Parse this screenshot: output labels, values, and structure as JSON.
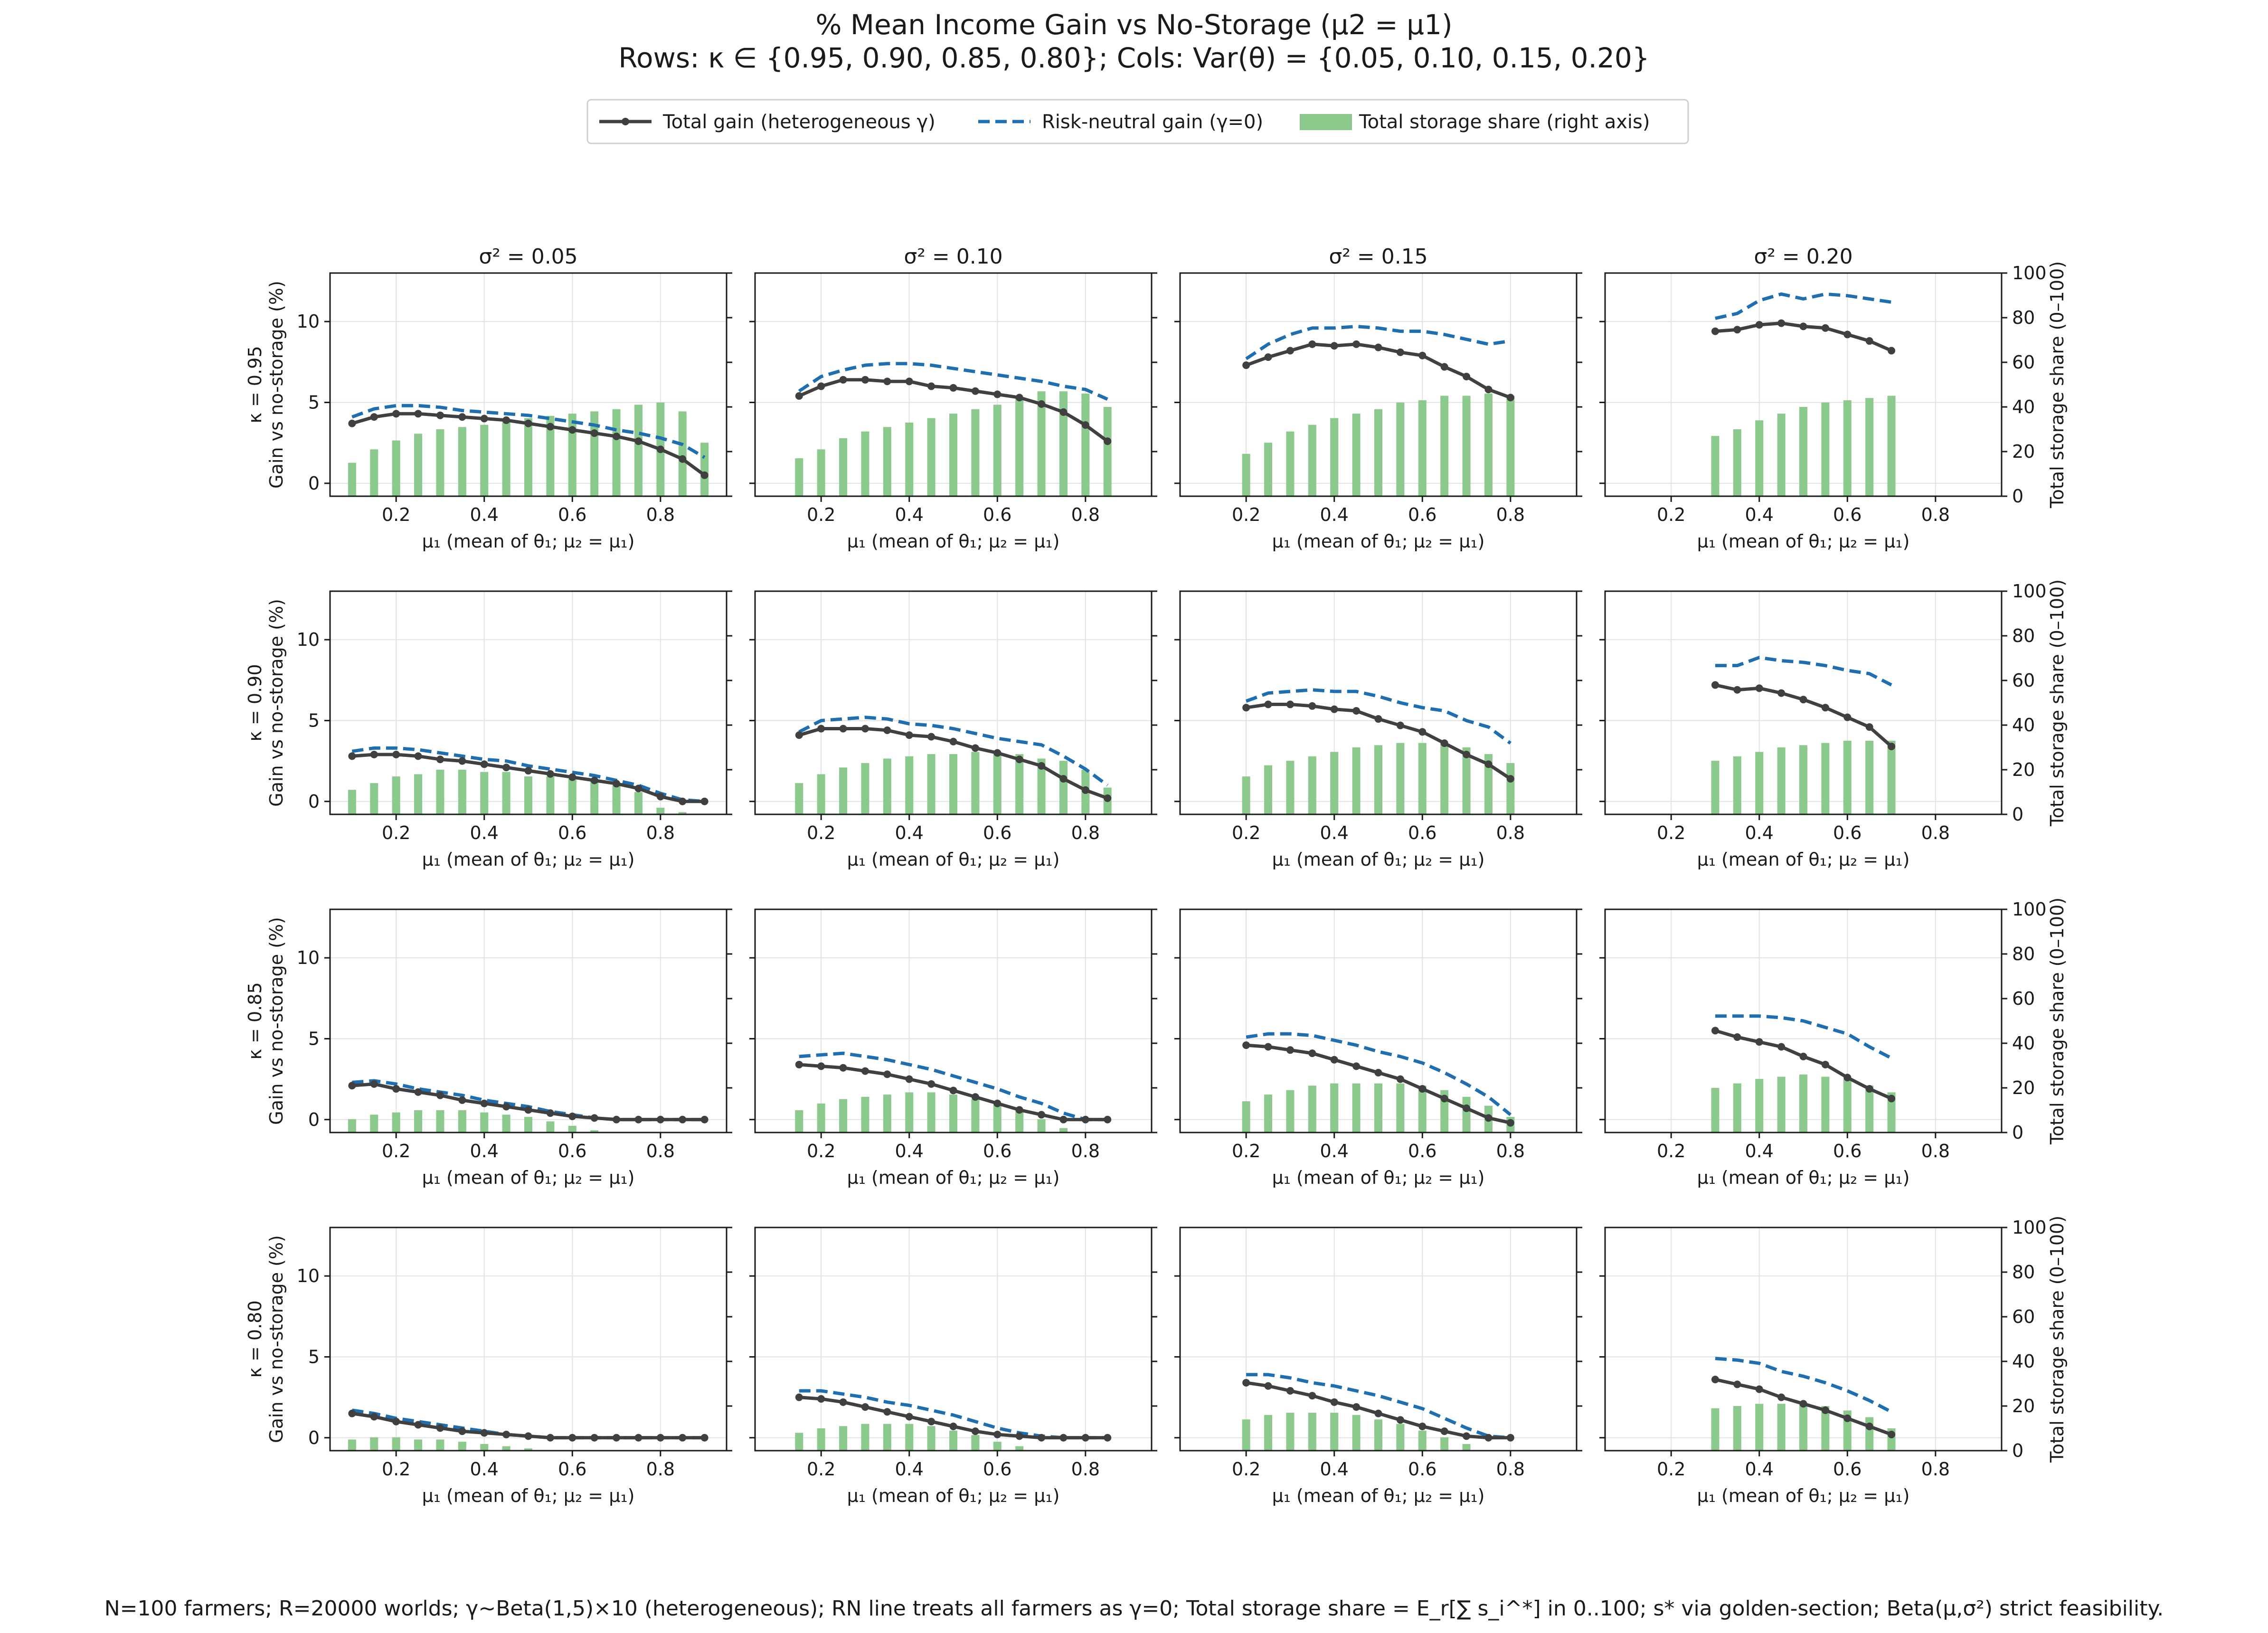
{
  "figure": {
    "title_line1": "% Mean Income Gain vs No-Storage (μ2 = μ1)",
    "title_line2": "Rows: κ ∈ {0.95, 0.90, 0.85, 0.80}; Cols: Var(θ) = {0.05, 0.10, 0.15, 0.20}",
    "footnote": "N=100 farmers; R=20000 worlds; γ~Beta(1,5)×10 (heterogeneous); RN line treats all farmers as γ=0; Total storage share = E_r[∑ s_i^*] in 0..100; s* via golden-section; Beta(μ,σ²) strict feasibility.",
    "legend": {
      "total": "Total gain (heterogeneous γ)",
      "rn": "Risk-neutral gain (γ=0)",
      "share": "Total storage share (right axis)"
    },
    "colors": {
      "total": "#404040",
      "rn": "#1f6fb0",
      "share": "#8cc98c",
      "grid": "#e2e2e2"
    }
  },
  "chart_data": {
    "type": "line",
    "layout": "grid 4 rows × 4 cols",
    "col_titles": [
      "σ² = 0.05",
      "σ² = 0.10",
      "σ² = 0.15",
      "σ² = 0.20"
    ],
    "row_labels": [
      "κ = 0.95",
      "κ = 0.90",
      "κ = 0.85",
      "κ = 0.80"
    ],
    "xlabel": "μ₁ (mean of θ₁; μ₂ = μ₁)",
    "ylabel_left": "Gain vs no-storage (%)",
    "ylabel_right": "Total storage share (0–100)",
    "xlim": [
      0.05,
      0.95
    ],
    "xticks": [
      "0.2",
      "0.4",
      "0.6",
      "0.8"
    ],
    "ylim_left": [
      -0.8,
      13
    ],
    "yticks_left": [
      "0",
      "5",
      "10"
    ],
    "ylim_right": [
      0,
      100
    ],
    "yticks_right": [
      "0",
      "20",
      "40",
      "60",
      "80",
      "100"
    ],
    "grid": true,
    "legend_position": "top-center",
    "panels": [
      [
        {
          "x": [
            0.1,
            0.15,
            0.2,
            0.25,
            0.3,
            0.35,
            0.4,
            0.45,
            0.5,
            0.55,
            0.6,
            0.65,
            0.7,
            0.75,
            0.8,
            0.85,
            0.9
          ],
          "total": [
            3.7,
            4.1,
            4.3,
            4.3,
            4.2,
            4.1,
            4.0,
            3.9,
            3.7,
            3.5,
            3.3,
            3.1,
            2.9,
            2.6,
            2.1,
            1.5,
            0.5
          ],
          "rn": [
            4.1,
            4.6,
            4.8,
            4.8,
            4.7,
            4.5,
            4.4,
            4.3,
            4.2,
            4.0,
            3.8,
            3.6,
            3.3,
            3.1,
            2.8,
            2.4,
            1.6
          ],
          "share": [
            15,
            21,
            25,
            28,
            30,
            31,
            32,
            34,
            35,
            36,
            37,
            38,
            39,
            41,
            42,
            38,
            24
          ]
        },
        {
          "x": [
            0.15,
            0.2,
            0.25,
            0.3,
            0.35,
            0.4,
            0.45,
            0.5,
            0.55,
            0.6,
            0.65,
            0.7,
            0.75,
            0.8,
            0.85
          ],
          "total": [
            5.4,
            6.0,
            6.4,
            6.4,
            6.3,
            6.3,
            6.0,
            5.9,
            5.7,
            5.5,
            5.3,
            4.9,
            4.4,
            3.6,
            2.6
          ],
          "rn": [
            5.7,
            6.6,
            7.0,
            7.3,
            7.4,
            7.4,
            7.3,
            7.1,
            6.9,
            6.7,
            6.5,
            6.3,
            6.0,
            5.8,
            5.2
          ],
          "share": [
            17,
            21,
            26,
            29,
            31,
            33,
            35,
            37,
            39,
            41,
            44,
            47,
            47,
            46,
            40
          ]
        },
        {
          "x": [
            0.2,
            0.25,
            0.3,
            0.35,
            0.4,
            0.45,
            0.5,
            0.55,
            0.6,
            0.65,
            0.7,
            0.75,
            0.8
          ],
          "total": [
            7.3,
            7.8,
            8.2,
            8.6,
            8.5,
            8.6,
            8.4,
            8.1,
            7.9,
            7.2,
            6.6,
            5.8,
            5.3
          ],
          "rn": [
            7.7,
            8.6,
            9.2,
            9.6,
            9.6,
            9.7,
            9.6,
            9.4,
            9.4,
            9.2,
            8.9,
            8.6,
            8.8
          ],
          "share": [
            19,
            24,
            29,
            32,
            35,
            37,
            39,
            42,
            43,
            45,
            45,
            46,
            45
          ]
        },
        {
          "x": [
            0.3,
            0.35,
            0.4,
            0.45,
            0.5,
            0.55,
            0.6,
            0.65,
            0.7
          ],
          "total": [
            9.4,
            9.5,
            9.8,
            9.9,
            9.7,
            9.6,
            9.2,
            8.8,
            8.2
          ],
          "rn": [
            10.2,
            10.5,
            11.3,
            11.7,
            11.4,
            11.7,
            11.6,
            11.4,
            11.2
          ],
          "share": [
            27,
            30,
            34,
            37,
            40,
            42,
            43,
            44,
            45
          ]
        }
      ],
      [
        {
          "x": [
            0.1,
            0.15,
            0.2,
            0.25,
            0.3,
            0.35,
            0.4,
            0.45,
            0.5,
            0.55,
            0.6,
            0.65,
            0.7,
            0.75,
            0.8,
            0.85,
            0.9
          ],
          "total": [
            2.8,
            2.9,
            2.9,
            2.8,
            2.6,
            2.5,
            2.3,
            2.1,
            1.9,
            1.7,
            1.5,
            1.3,
            1.1,
            0.8,
            0.3,
            0.0,
            0.0
          ],
          "rn": [
            3.1,
            3.3,
            3.3,
            3.2,
            3.0,
            2.8,
            2.6,
            2.5,
            2.2,
            2.0,
            1.8,
            1.6,
            1.3,
            1.0,
            0.5,
            0.1,
            0.0
          ],
          "share": [
            11,
            14,
            17,
            18,
            20,
            20,
            19,
            19,
            17,
            17,
            16,
            15,
            13,
            10,
            3,
            1,
            0
          ]
        },
        {
          "x": [
            0.15,
            0.2,
            0.25,
            0.3,
            0.35,
            0.4,
            0.45,
            0.5,
            0.55,
            0.6,
            0.65,
            0.7,
            0.75,
            0.8,
            0.85
          ],
          "total": [
            4.1,
            4.5,
            4.5,
            4.5,
            4.4,
            4.1,
            4.0,
            3.7,
            3.3,
            3.0,
            2.6,
            2.2,
            1.4,
            0.7,
            0.2
          ],
          "rn": [
            4.3,
            5.0,
            5.1,
            5.2,
            5.1,
            4.8,
            4.7,
            4.5,
            4.2,
            3.9,
            3.7,
            3.5,
            2.8,
            2.0,
            1.0
          ],
          "share": [
            14,
            18,
            21,
            23,
            25,
            26,
            27,
            27,
            28,
            28,
            27,
            25,
            24,
            20,
            12
          ]
        },
        {
          "x": [
            0.2,
            0.25,
            0.3,
            0.35,
            0.4,
            0.45,
            0.5,
            0.55,
            0.6,
            0.65,
            0.7,
            0.75,
            0.8
          ],
          "total": [
            5.8,
            6.0,
            6.0,
            5.9,
            5.7,
            5.6,
            5.1,
            4.7,
            4.3,
            3.6,
            2.9,
            2.3,
            1.4
          ],
          "rn": [
            6.2,
            6.7,
            6.8,
            6.9,
            6.8,
            6.8,
            6.5,
            6.1,
            5.8,
            5.6,
            5.0,
            4.6,
            3.6
          ],
          "share": [
            17,
            22,
            24,
            26,
            28,
            30,
            31,
            32,
            32,
            32,
            30,
            27,
            23
          ]
        },
        {
          "x": [
            0.3,
            0.35,
            0.4,
            0.45,
            0.5,
            0.55,
            0.6,
            0.65,
            0.7
          ],
          "total": [
            7.2,
            6.9,
            7.0,
            6.7,
            6.3,
            5.8,
            5.2,
            4.6,
            3.4
          ],
          "rn": [
            8.4,
            8.4,
            8.9,
            8.7,
            8.6,
            8.4,
            8.1,
            7.9,
            7.2
          ],
          "share": [
            24,
            26,
            28,
            30,
            31,
            32,
            33,
            33,
            33
          ]
        }
      ],
      [
        {
          "x": [
            0.1,
            0.15,
            0.2,
            0.25,
            0.3,
            0.35,
            0.4,
            0.45,
            0.5,
            0.55,
            0.6,
            0.65,
            0.7,
            0.75,
            0.8,
            0.85,
            0.9
          ],
          "total": [
            2.1,
            2.2,
            1.9,
            1.7,
            1.5,
            1.2,
            1.0,
            0.8,
            0.6,
            0.4,
            0.2,
            0.1,
            0.0,
            0.0,
            0.0,
            0.0,
            0.0
          ],
          "rn": [
            2.3,
            2.4,
            2.2,
            1.9,
            1.7,
            1.5,
            1.2,
            1.0,
            0.8,
            0.5,
            0.3,
            0.1,
            0.0,
            0.0,
            0.0,
            0.0,
            0.0
          ],
          "share": [
            6,
            8,
            9,
            10,
            10,
            10,
            9,
            8,
            7,
            5,
            3,
            1,
            0,
            0,
            0,
            0,
            0
          ]
        },
        {
          "x": [
            0.15,
            0.2,
            0.25,
            0.3,
            0.35,
            0.4,
            0.45,
            0.5,
            0.55,
            0.6,
            0.65,
            0.7,
            0.75,
            0.8,
            0.85
          ],
          "total": [
            3.4,
            3.3,
            3.2,
            3.0,
            2.8,
            2.5,
            2.2,
            1.8,
            1.4,
            1.0,
            0.6,
            0.3,
            0.0,
            0.0,
            0.0
          ],
          "rn": [
            3.9,
            4.0,
            4.1,
            3.9,
            3.7,
            3.4,
            3.1,
            2.7,
            2.3,
            1.9,
            1.4,
            1.0,
            0.4,
            0.0,
            0.0
          ],
          "share": [
            10,
            13,
            15,
            16,
            17,
            18,
            18,
            17,
            15,
            13,
            10,
            6,
            2,
            0,
            0
          ]
        },
        {
          "x": [
            0.2,
            0.25,
            0.3,
            0.35,
            0.4,
            0.45,
            0.5,
            0.55,
            0.6,
            0.65,
            0.7,
            0.75,
            0.8
          ],
          "total": [
            4.6,
            4.5,
            4.3,
            4.1,
            3.7,
            3.3,
            2.9,
            2.5,
            1.9,
            1.3,
            0.7,
            0.1,
            -0.2
          ],
          "rn": [
            5.1,
            5.3,
            5.3,
            5.2,
            4.9,
            4.6,
            4.2,
            3.9,
            3.5,
            2.9,
            2.2,
            1.4,
            0.3
          ],
          "share": [
            14,
            17,
            19,
            21,
            22,
            22,
            22,
            22,
            21,
            19,
            16,
            12,
            7
          ]
        },
        {
          "x": [
            0.3,
            0.35,
            0.4,
            0.45,
            0.5,
            0.55,
            0.6,
            0.65,
            0.7
          ],
          "total": [
            5.5,
            5.1,
            4.8,
            4.5,
            3.9,
            3.4,
            2.6,
            1.9,
            1.3
          ],
          "rn": [
            6.4,
            6.4,
            6.4,
            6.3,
            6.1,
            5.7,
            5.3,
            4.5,
            3.8
          ],
          "share": [
            20,
            22,
            24,
            25,
            26,
            25,
            24,
            21,
            18
          ]
        }
      ],
      [
        {
          "x": [
            0.1,
            0.15,
            0.2,
            0.25,
            0.3,
            0.35,
            0.4,
            0.45,
            0.5,
            0.55,
            0.6,
            0.65,
            0.7,
            0.75,
            0.8,
            0.85,
            0.9
          ],
          "total": [
            1.5,
            1.3,
            1.0,
            0.8,
            0.6,
            0.4,
            0.3,
            0.2,
            0.1,
            0.0,
            0.0,
            0.0,
            0.0,
            0.0,
            0.0,
            0.0,
            0.0
          ],
          "rn": [
            1.7,
            1.5,
            1.2,
            1.0,
            0.8,
            0.6,
            0.4,
            0.2,
            0.1,
            0.0,
            0.0,
            0.0,
            0.0,
            0.0,
            0.0,
            0.0,
            0.0
          ],
          "share": [
            5,
            6,
            6,
            5,
            5,
            4,
            3,
            2,
            1,
            0,
            0,
            0,
            0,
            0,
            0,
            0,
            0
          ]
        },
        {
          "x": [
            0.15,
            0.2,
            0.25,
            0.3,
            0.35,
            0.4,
            0.45,
            0.5,
            0.55,
            0.6,
            0.65,
            0.7,
            0.75,
            0.8,
            0.85
          ],
          "total": [
            2.5,
            2.4,
            2.2,
            1.9,
            1.6,
            1.3,
            1.0,
            0.7,
            0.4,
            0.2,
            0.1,
            0.0,
            0.0,
            0.0,
            0.0
          ],
          "rn": [
            2.9,
            2.9,
            2.7,
            2.5,
            2.2,
            2.0,
            1.7,
            1.4,
            1.0,
            0.6,
            0.3,
            0.1,
            0.0,
            0.0,
            0.0
          ],
          "share": [
            8,
            10,
            11,
            12,
            12,
            12,
            11,
            9,
            7,
            4,
            2,
            0,
            0,
            0,
            0
          ]
        },
        {
          "x": [
            0.2,
            0.25,
            0.3,
            0.35,
            0.4,
            0.45,
            0.5,
            0.55,
            0.6,
            0.65,
            0.7,
            0.75,
            0.8
          ],
          "total": [
            3.4,
            3.2,
            2.9,
            2.6,
            2.2,
            1.9,
            1.5,
            1.1,
            0.7,
            0.4,
            0.1,
            0.0,
            0.0
          ],
          "rn": [
            3.9,
            3.9,
            3.7,
            3.4,
            3.2,
            2.9,
            2.6,
            2.2,
            1.8,
            1.2,
            0.6,
            0.1,
            0.0
          ],
          "share": [
            14,
            16,
            17,
            17,
            17,
            16,
            14,
            12,
            9,
            6,
            3,
            0,
            0
          ]
        },
        {
          "x": [
            0.3,
            0.35,
            0.4,
            0.45,
            0.5,
            0.55,
            0.6,
            0.65,
            0.7
          ],
          "total": [
            3.6,
            3.3,
            3.0,
            2.5,
            2.1,
            1.7,
            1.2,
            0.7,
            0.2
          ],
          "rn": [
            4.9,
            4.8,
            4.6,
            4.1,
            3.8,
            3.4,
            2.9,
            2.3,
            1.6
          ],
          "share": [
            19,
            20,
            21,
            21,
            21,
            20,
            18,
            15,
            10
          ]
        }
      ]
    ]
  }
}
